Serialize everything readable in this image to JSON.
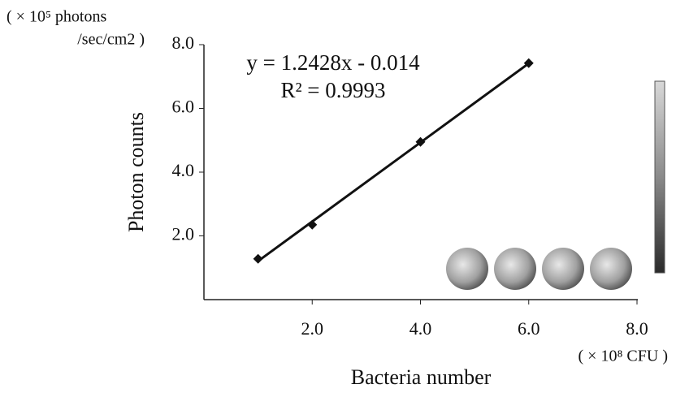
{
  "chart_data": {
    "type": "scatter",
    "x_label": "Bacteria number",
    "y_label": "Photon counts",
    "y_unit_label": [
      "( × 10⁵ photons",
      "/sec/cm2 )"
    ],
    "x_unit_label": "( × 10⁸  CFU )",
    "annotations": [
      "y = 1.2428x - 0.014",
      "R² = 0.9993"
    ],
    "x": [
      1,
      2,
      4,
      6
    ],
    "values": [
      1.28,
      2.35,
      4.95,
      7.42
    ],
    "color": "#111111",
    "trendline": true,
    "xlim": [
      0,
      8
    ],
    "ylim": [
      0,
      8
    ],
    "xticks": [
      {
        "value": 2,
        "label": "2.0"
      },
      {
        "value": 4,
        "label": "4.0"
      },
      {
        "value": 6,
        "label": "6.0"
      },
      {
        "value": 8,
        "label": "8.0"
      }
    ],
    "yticks": [
      {
        "value": 2,
        "label": "2.0"
      },
      {
        "value": 4,
        "label": "4.0"
      },
      {
        "value": 6,
        "label": "6.0"
      },
      {
        "value": 8,
        "label": "8.0"
      }
    ]
  }
}
